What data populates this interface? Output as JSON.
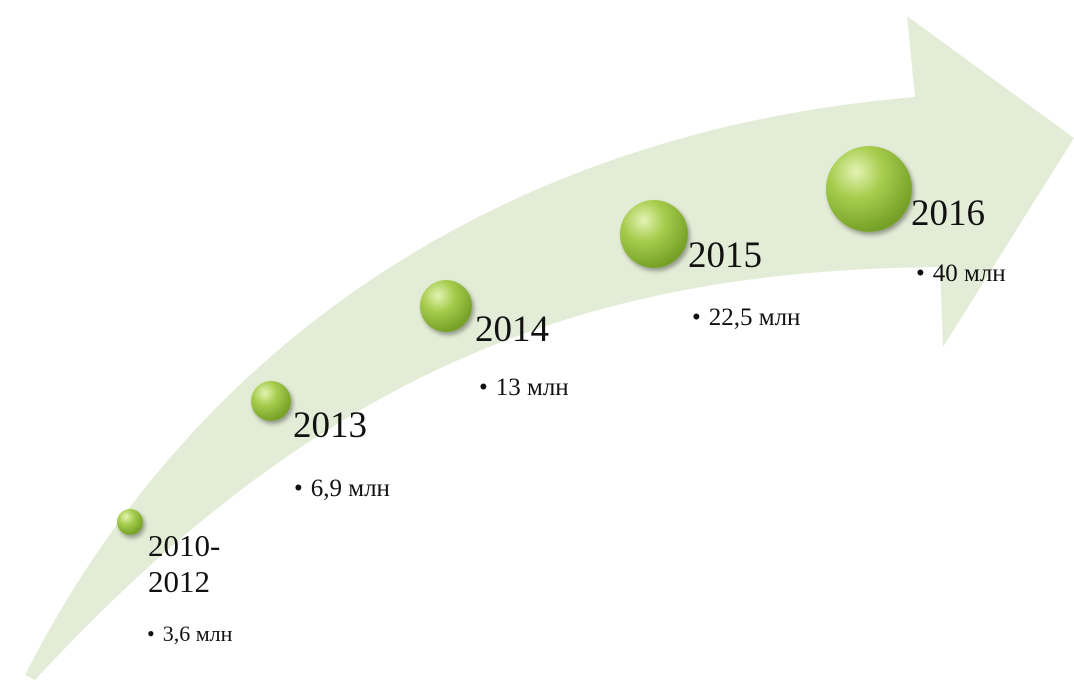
{
  "colors": {
    "arrow_fill": "#e3ecd6",
    "ball_light": "#e3f3b5",
    "ball_mid": "#a7cd4e",
    "ball_dark": "#5f8a1d",
    "text": "#111111"
  },
  "milestones": [
    {
      "year": "2010-\n2012",
      "value": "3,6 млн"
    },
    {
      "year": "2013",
      "value": "6,9 млн"
    },
    {
      "year": "2014",
      "value": "13 млн"
    },
    {
      "year": "2015",
      "value": "22,5 млн"
    },
    {
      "year": "2016",
      "value": "40 млн"
    }
  ]
}
